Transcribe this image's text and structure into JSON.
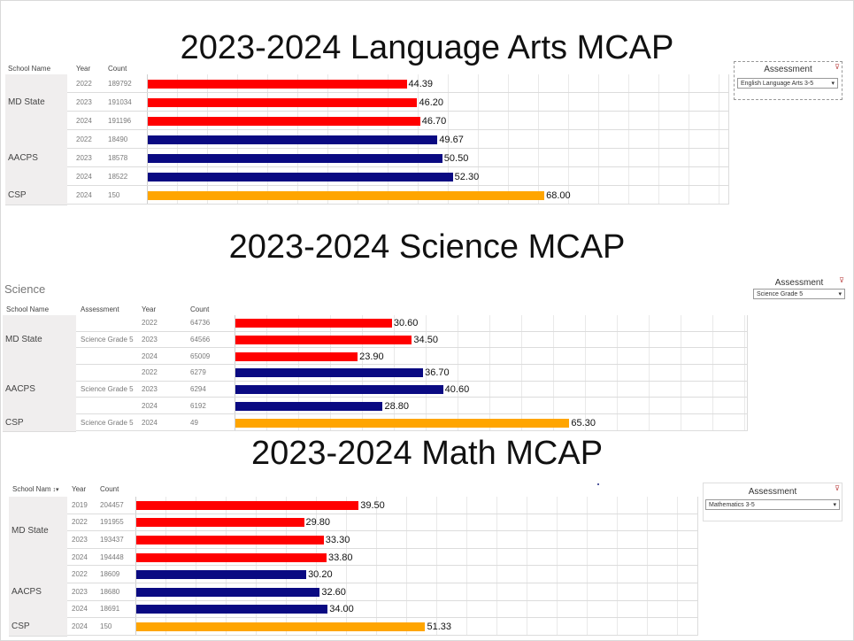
{
  "titles": {
    "ela": "2023-2024 Language Arts MCAP",
    "science": "2023-2024 Science MCAP",
    "math": "2023-2024 Math MCAP"
  },
  "science_sheet_label": "Science",
  "filters": {
    "ela": {
      "title": "Assessment",
      "value": "English Language Arts 3-5",
      "icon": "filter-icon"
    },
    "science": {
      "title": "Assessment",
      "value": "Science Grade 5",
      "icon": "filter-icon"
    },
    "math": {
      "title": "Assessment",
      "value": "Mathematics 3-5",
      "icon": "filter-icon"
    }
  },
  "colors": {
    "md_state": "#ff0000",
    "aacps": "#0a0a82",
    "csp": "#ffa500"
  },
  "chart_data": [
    {
      "type": "bar",
      "title": "2023-2024 Language Arts MCAP",
      "columns": [
        "School Name",
        "Year",
        "Count"
      ],
      "groups": [
        {
          "name": "MD State",
          "color": "#ff0000",
          "rows": [
            {
              "year": "2022",
              "count": "189792",
              "value": 44.39,
              "label": "44.39"
            },
            {
              "year": "2023",
              "count": "191034",
              "value": 46.2,
              "label": "46.20"
            },
            {
              "year": "2024",
              "count": "191196",
              "value": 46.7,
              "label": "46.70"
            }
          ]
        },
        {
          "name": "AACPS",
          "color": "#0a0a82",
          "rows": [
            {
              "year": "2022",
              "count": "18490",
              "value": 49.67,
              "label": "49.67"
            },
            {
              "year": "2023",
              "count": "18578",
              "value": 50.5,
              "label": "50.50"
            },
            {
              "year": "2024",
              "count": "18522",
              "value": 52.3,
              "label": "52.30"
            }
          ]
        },
        {
          "name": "CSP",
          "color": "#ffa500",
          "rows": [
            {
              "year": "2024",
              "count": "150",
              "value": 68.0,
              "label": "68.00"
            }
          ]
        }
      ],
      "xlim": [
        0,
        100
      ]
    },
    {
      "type": "bar",
      "title": "2023-2024 Science MCAP",
      "columns": [
        "School Name",
        "Assessment",
        "Year",
        "Count"
      ],
      "groups": [
        {
          "name": "MD State",
          "assessment": "Science Grade 5",
          "color": "#ff0000",
          "rows": [
            {
              "year": "2022",
              "count": "64736",
              "value": 30.6,
              "label": "30.60"
            },
            {
              "year": "2023",
              "count": "64566",
              "value": 34.5,
              "label": "34.50"
            },
            {
              "year": "2024",
              "count": "65009",
              "value": 23.9,
              "label": "23.90"
            }
          ]
        },
        {
          "name": "AACPS",
          "assessment": "Science Grade 5",
          "color": "#0a0a82",
          "rows": [
            {
              "year": "2022",
              "count": "6279",
              "value": 36.7,
              "label": "36.70"
            },
            {
              "year": "2023",
              "count": "6294",
              "value": 40.6,
              "label": "40.60"
            },
            {
              "year": "2024",
              "count": "6192",
              "value": 28.8,
              "label": "28.80"
            }
          ]
        },
        {
          "name": "CSP",
          "assessment": "Science Grade 5",
          "color": "#ffa500",
          "rows": [
            {
              "year": "2024",
              "count": "49",
              "value": 65.3,
              "label": "65.30"
            }
          ]
        }
      ],
      "xlim": [
        0,
        100
      ]
    },
    {
      "type": "bar",
      "title": "2023-2024 Math MCAP",
      "columns": [
        "School Nam",
        "Year",
        "Count"
      ],
      "groups": [
        {
          "name": "MD State",
          "color": "#ff0000",
          "rows": [
            {
              "year": "2019",
              "count": "204457",
              "value": 39.5,
              "label": "39.50"
            },
            {
              "year": "2022",
              "count": "191955",
              "value": 29.8,
              "label": "29.80"
            },
            {
              "year": "2023",
              "count": "193437",
              "value": 33.3,
              "label": "33.30"
            },
            {
              "year": "2024",
              "count": "194448",
              "value": 33.8,
              "label": "33.80"
            }
          ]
        },
        {
          "name": "AACPS",
          "color": "#0a0a82",
          "rows": [
            {
              "year": "2022",
              "count": "18609",
              "value": 30.2,
              "label": "30.20"
            },
            {
              "year": "2023",
              "count": "18680",
              "value": 32.6,
              "label": "32.60"
            },
            {
              "year": "2024",
              "count": "18691",
              "value": 34.0,
              "label": "34.00"
            }
          ]
        },
        {
          "name": "CSP",
          "color": "#ffa500",
          "rows": [
            {
              "year": "2024",
              "count": "150",
              "value": 51.33,
              "label": "51.33"
            }
          ]
        }
      ],
      "xlim": [
        0,
        100
      ]
    }
  ]
}
